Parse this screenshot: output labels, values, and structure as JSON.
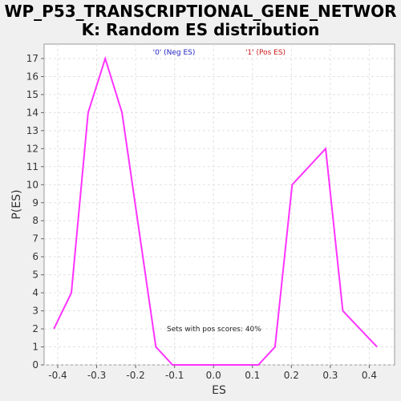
{
  "chart_data": {
    "type": "line",
    "title_lines": [
      "WP_P53_TRANSCRIPTIONAL_GENE_NETWOR",
      "K: Random ES distribution"
    ],
    "xlabel": "ES",
    "ylabel": "P(ES)",
    "xlim": [
      -0.435,
      0.465
    ],
    "ylim": [
      0,
      17.8
    ],
    "x_ticks": [
      -0.4,
      -0.3,
      -0.2,
      -0.1,
      0.0,
      0.1,
      0.2,
      0.3,
      0.4
    ],
    "x_tick_labels": [
      "-0.4",
      "-0.3",
      "-0.2",
      "-0.1",
      "0.0",
      "0.1",
      "0.2",
      "0.3",
      "0.4"
    ],
    "y_ticks": [
      0,
      1,
      2,
      3,
      4,
      5,
      6,
      7,
      8,
      9,
      10,
      11,
      12,
      13,
      14,
      15,
      16,
      17
    ],
    "y_tick_labels": [
      "0",
      "1",
      "2",
      "3",
      "4",
      "5",
      "6",
      "7",
      "8",
      "9",
      "10",
      "11",
      "12",
      "13",
      "14",
      "15",
      "16",
      "17"
    ],
    "grid": true,
    "legend": [
      {
        "label": "'0' (Neg ES)",
        "color": "#1f1fbf"
      },
      {
        "label": "'1' (Pos ES)",
        "color": "#d01818"
      }
    ],
    "annotation": "Sets with pos scores: 40%",
    "series": [
      {
        "color": "#ff33ff",
        "x": [
          -0.41,
          -0.365,
          -0.322,
          -0.278,
          -0.235,
          -0.148,
          -0.105,
          0.115,
          0.158,
          0.202,
          0.288,
          0.332,
          0.42
        ],
        "y": [
          2,
          4,
          14,
          17,
          14,
          1,
          0,
          0,
          1,
          10,
          12,
          3,
          1
        ]
      }
    ]
  }
}
